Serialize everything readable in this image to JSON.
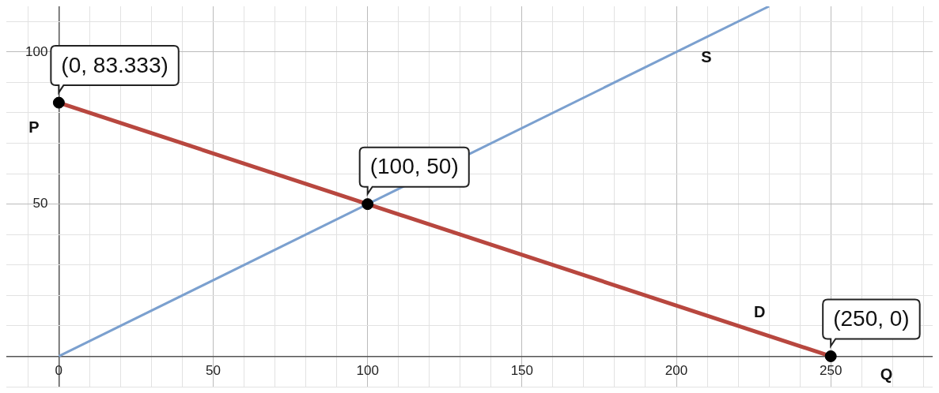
{
  "chart_data": {
    "type": "line",
    "xlabel": "Q",
    "ylabel": "P",
    "xlim": [
      -17,
      283
    ],
    "ylim": [
      -10,
      115
    ],
    "xticks": [
      {
        "value": -10,
        "label": null
      },
      0,
      {
        "value": 10,
        "label": null
      },
      {
        "value": 20,
        "label": null
      },
      {
        "value": 30,
        "label": null
      },
      {
        "value": 40,
        "label": null
      },
      50,
      {
        "value": 60,
        "label": null
      },
      {
        "value": 70,
        "label": null
      },
      {
        "value": 80,
        "label": null
      },
      {
        "value": 90,
        "label": null
      },
      100,
      {
        "value": 110,
        "label": null
      },
      {
        "value": 120,
        "label": null
      },
      {
        "value": 130,
        "label": null
      },
      {
        "value": 140,
        "label": null
      },
      150,
      {
        "value": 160,
        "label": null
      },
      {
        "value": 170,
        "label": null
      },
      {
        "value": 180,
        "label": null
      },
      {
        "value": 190,
        "label": null
      },
      200,
      {
        "value": 210,
        "label": null
      },
      {
        "value": 220,
        "label": null
      },
      {
        "value": 230,
        "label": null
      },
      {
        "value": 240,
        "label": null
      },
      250,
      {
        "value": 260,
        "label": null
      },
      {
        "value": 270,
        "label": null
      },
      {
        "value": 280,
        "label": null
      }
    ],
    "yticks": [
      {
        "value": -10,
        "label": null
      },
      {
        "value": 0,
        "label": null
      },
      {
        "value": 10,
        "label": null
      },
      {
        "value": 20,
        "label": null
      },
      {
        "value": 30,
        "label": null
      },
      {
        "value": 40,
        "label": null
      },
      50,
      {
        "value": 60,
        "label": null
      },
      {
        "value": 70,
        "label": null
      },
      {
        "value": 80,
        "label": null
      },
      {
        "value": 90,
        "label": null
      },
      100,
      {
        "value": 110,
        "label": null
      }
    ],
    "grid": true,
    "legend": false,
    "series": [
      {
        "name": "S",
        "color": "#7ba0cf",
        "x": [
          0,
          230
        ],
        "values": [
          0,
          115
        ],
        "marker": "none"
      },
      {
        "name": "D",
        "color": "#b8473f",
        "x": [
          0,
          250
        ],
        "values": [
          83.333,
          0
        ],
        "marker": "none"
      },
      {
        "type": "scatter",
        "color": "#000000",
        "x": [
          0,
          100,
          250
        ],
        "values": [
          83.333,
          50,
          0
        ],
        "marker": "circle"
      }
    ],
    "annotations": [
      {
        "text": "(0, 83.333)",
        "x": 0,
        "y": 83.333
      },
      {
        "text": "(100, 50)",
        "x": 100,
        "y": 50
      },
      {
        "text": "(250, 0)",
        "x": 250,
        "y": 0
      }
    ]
  }
}
